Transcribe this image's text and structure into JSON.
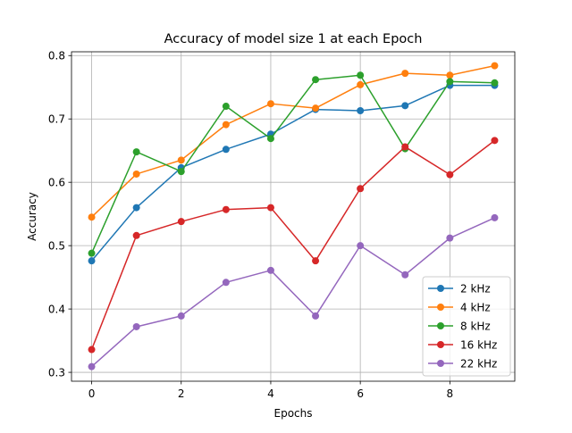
{
  "chart_data": {
    "type": "line",
    "title": "Accuracy of model size 1 at each Epoch",
    "xlabel": "Epochs",
    "ylabel": "Accuracy",
    "x": [
      0,
      1,
      2,
      3,
      4,
      5,
      6,
      7,
      8,
      9
    ],
    "xlim": [
      -0.45,
      9.45
    ],
    "ylim": [
      0.286,
      0.806
    ],
    "xticks": [
      0,
      2,
      4,
      6,
      8
    ],
    "yticks": [
      0.3,
      0.4,
      0.5,
      0.6,
      0.7,
      0.8
    ],
    "ytick_labels": [
      "0.3",
      "0.4",
      "0.5",
      "0.6",
      "0.7",
      "0.8"
    ],
    "grid": true,
    "legend_position": "lower-right",
    "series": [
      {
        "name": "2 kHz",
        "color": "#1f77b4",
        "values": [
          0.476,
          0.56,
          0.623,
          0.652,
          0.676,
          0.715,
          0.713,
          0.721,
          0.753,
          0.753
        ]
      },
      {
        "name": "4 kHz",
        "color": "#ff7f0e",
        "values": [
          0.545,
          0.613,
          0.635,
          0.691,
          0.724,
          0.717,
          0.754,
          0.772,
          0.769,
          0.784
        ]
      },
      {
        "name": "8 kHz",
        "color": "#2ca02c",
        "values": [
          0.488,
          0.648,
          0.617,
          0.72,
          0.669,
          0.762,
          0.769,
          0.653,
          0.759,
          0.757
        ]
      },
      {
        "name": "16 kHz",
        "color": "#d62728",
        "values": [
          0.336,
          0.516,
          0.538,
          0.557,
          0.56,
          0.476,
          0.59,
          0.656,
          0.612,
          0.666
        ]
      },
      {
        "name": "22 kHz",
        "color": "#9467bd",
        "values": [
          0.309,
          0.372,
          0.389,
          0.442,
          0.461,
          0.389,
          0.5,
          0.454,
          0.512,
          0.544
        ]
      }
    ]
  }
}
